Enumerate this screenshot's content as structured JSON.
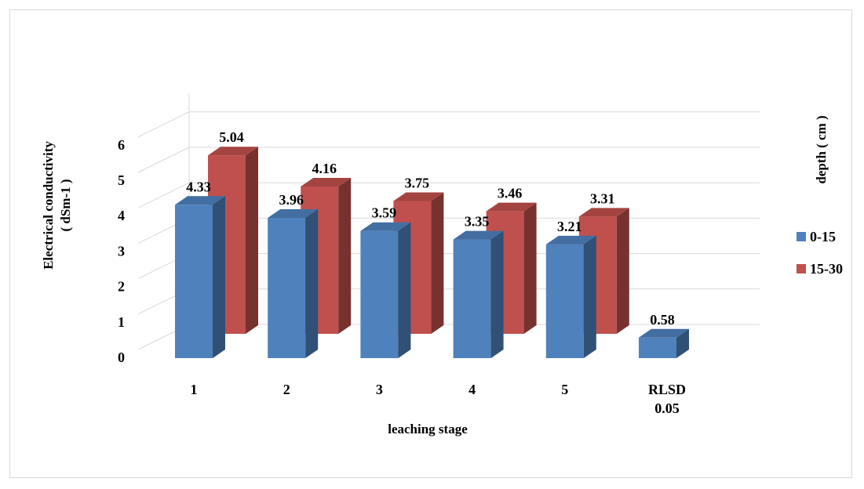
{
  "chart_data": {
    "type": "bar",
    "subtype": "3d-clustered-column",
    "title": "",
    "xlabel": "leaching stage",
    "ylabel": "Electrical conductivity",
    "ylabel_unit": "( dSm-1 )",
    "categories": [
      "1",
      "2",
      "3",
      "4",
      "5",
      "RLSD 0.05"
    ],
    "category_lines": [
      [
        "1"
      ],
      [
        "2"
      ],
      [
        "3"
      ],
      [
        "4"
      ],
      [
        "5"
      ],
      [
        "RLSD",
        "0.05"
      ]
    ],
    "series": [
      {
        "name": "0-15",
        "values": [
          4.33,
          3.96,
          3.59,
          3.35,
          3.21,
          0.58
        ],
        "color": "#4f81bd"
      },
      {
        "name": "15-30",
        "values": [
          5.04,
          4.16,
          3.75,
          3.46,
          3.31,
          null
        ],
        "color": "#c0504d"
      }
    ],
    "data_labels": [
      [
        "4.33",
        "3.96",
        "3.59",
        "3.35",
        "3.21",
        "0.58"
      ],
      [
        "5.04",
        "4.16",
        "3.75",
        "3.46",
        "3.31",
        ""
      ]
    ],
    "y_ticks": [
      "0",
      "1",
      "2",
      "3",
      "4",
      "5",
      "6"
    ],
    "ylim": [
      0,
      6
    ],
    "grid": true,
    "legend": {
      "title": "depth ( cm )",
      "position": "right"
    }
  }
}
